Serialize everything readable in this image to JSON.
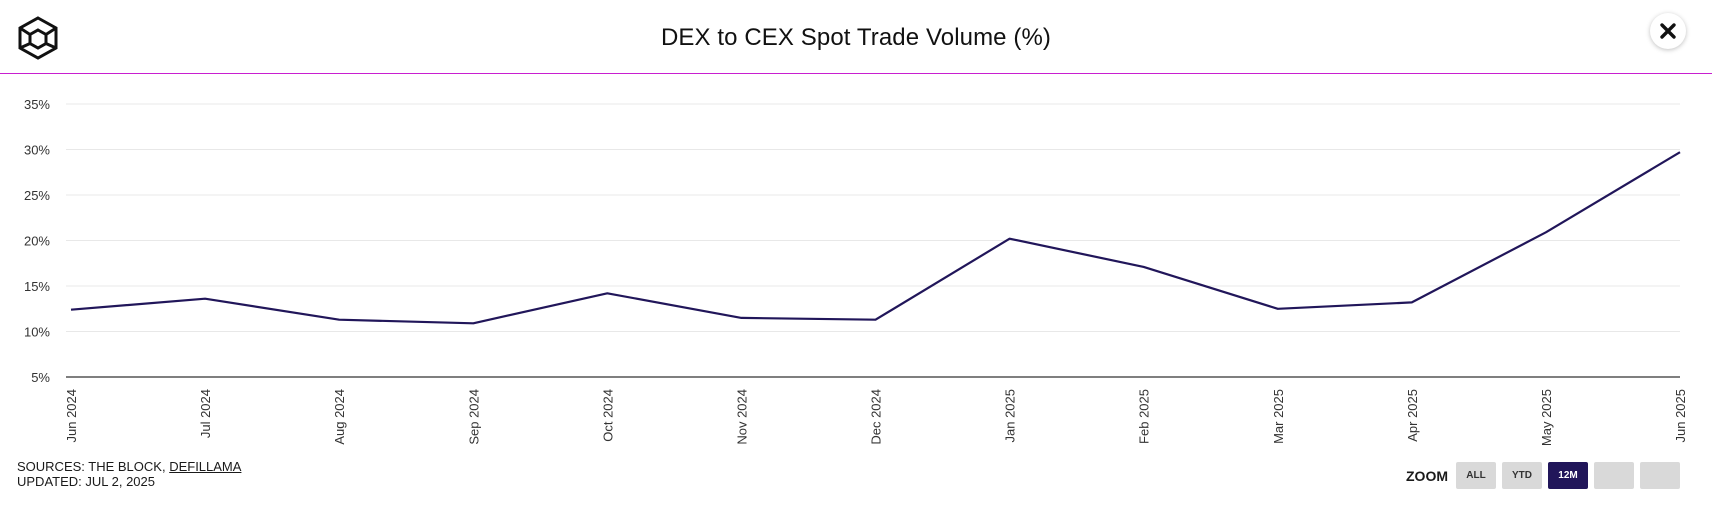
{
  "header": {
    "title": "DEX to CEX Spot Trade Volume (%)"
  },
  "footer": {
    "sources_prefix": "SOURCES: THE BLOCK, ",
    "sources_link": "DEFILLAMA",
    "updated": "UPDATED: JUL 2, 2025"
  },
  "zoom": {
    "label": "ZOOM",
    "buttons": [
      "ALL",
      "YTD",
      "12M",
      "",
      ""
    ],
    "active": "12M"
  },
  "colors": {
    "line": "#21165a",
    "accent": "#c81fd0",
    "active_button": "#21165a"
  },
  "chart_data": {
    "type": "line",
    "title": "DEX to CEX Spot Trade Volume (%)",
    "categories": [
      "Jun 2024",
      "Jul 2024",
      "Aug 2024",
      "Sep 2024",
      "Oct 2024",
      "Nov 2024",
      "Dec 2024",
      "Jan 2025",
      "Feb 2025",
      "Mar 2025",
      "Apr 2025",
      "May 2025",
      "Jun 2025"
    ],
    "series": [
      {
        "values": [
          12.4,
          13.6,
          11.3,
          10.9,
          14.2,
          11.5,
          11.3,
          20.2,
          17.1,
          12.5,
          13.2,
          20.9,
          29.7
        ]
      }
    ],
    "yticks": [
      "35%",
      "30%",
      "25%",
      "20%",
      "15%",
      "10%",
      "5%"
    ],
    "ytick_values": [
      35,
      30,
      25,
      20,
      15,
      10,
      5
    ],
    "ylim": [
      5,
      35
    ],
    "grid": true
  }
}
